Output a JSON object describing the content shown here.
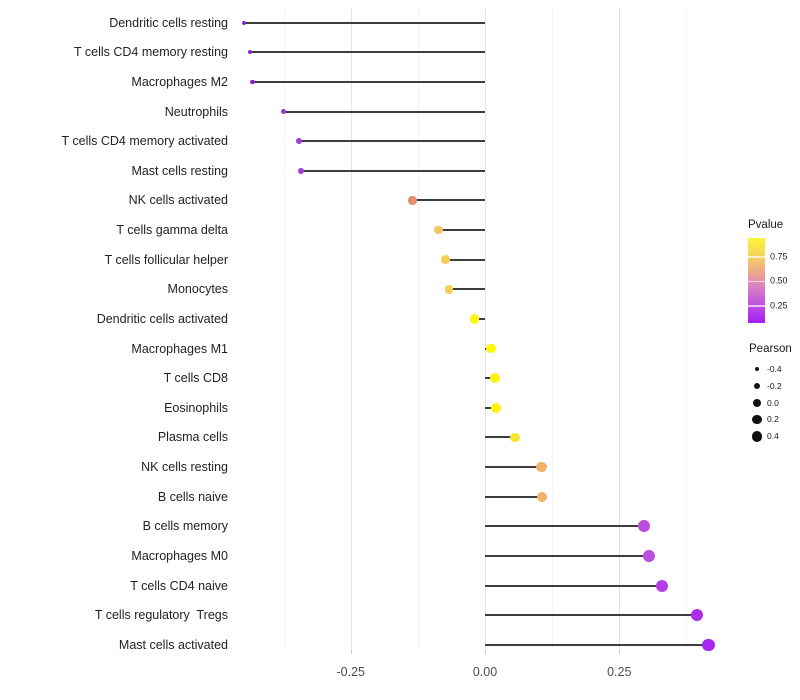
{
  "chart_data": {
    "type": "scatter",
    "variant": "lollipop",
    "title": "",
    "xlabel": "",
    "ylabel": "",
    "grid": true,
    "legend_position": "right",
    "categories": [
      "Dendritic cells resting",
      "T cells CD4 memory resting",
      "Macrophages M2",
      "Neutrophils",
      "T cells CD4 memory activated",
      "Mast cells resting",
      "NK cells activated",
      "T cells gamma delta",
      "T cells follicular helper",
      "Monocytes",
      "Dendritic cells activated",
      "Macrophages M1",
      "T cells CD8",
      "Eosinophils",
      "Plasma cells",
      "NK cells resting",
      "B cells naive",
      "B cells memory",
      "Macrophages M0",
      "T cells CD4 naive",
      "T cells regulatory  Tregs",
      "Mast cells activated"
    ],
    "series": [
      {
        "name": "Pearson",
        "values": [
          -0.448,
          -0.437,
          -0.433,
          -0.375,
          -0.346,
          -0.342,
          -0.135,
          -0.087,
          -0.074,
          -0.067,
          -0.02,
          0.011,
          0.019,
          0.021,
          0.056,
          0.105,
          0.106,
          0.296,
          0.306,
          0.329,
          0.395,
          0.416
        ]
      }
    ],
    "point_colors": [
      "#8824CE",
      "#8A26CE",
      "#8A26CE",
      "#9933D6",
      "#A33DDA",
      "#A33DDA",
      "#E0926E",
      "#F3C45F",
      "#F6CE55",
      "#F6CE55",
      "#FDF70D",
      "#FEFA05",
      "#FDF40E",
      "#FDF40E",
      "#F8E532",
      "#F0B169",
      "#F0B169",
      "#BC4EDE",
      "#BC4EDE",
      "#B43EE4",
      "#AC2EEA",
      "#A826EC"
    ],
    "x_axis": {
      "ticks": [
        {
          "label": "-0.25",
          "value": -0.25
        },
        {
          "label": "0.00",
          "value": 0.0
        },
        {
          "label": "0.25",
          "value": 0.25
        }
      ],
      "minor_gridlines": [
        -0.375,
        -0.125,
        0.125,
        0.375
      ],
      "xlim": [
        -0.46,
        0.44
      ]
    },
    "legends": {
      "pvalue": {
        "title": "Pvalue",
        "gradient_low_color": "#A01EF0",
        "gradient_high_color": "#FCF631",
        "ticks": [
          {
            "label": "0.75",
            "pos": 0.222
          },
          {
            "label": "0.50",
            "pos": 0.511
          },
          {
            "label": "0.25",
            "pos": 0.799
          }
        ]
      },
      "pearson": {
        "title": "Pearson",
        "entries": [
          {
            "label": "-0.4",
            "value": -0.4
          },
          {
            "label": "-0.2",
            "value": -0.2
          },
          {
            "label": "0.0",
            "value": 0.0
          },
          {
            "label": "0.2",
            "value": 0.2
          },
          {
            "label": "0.4",
            "value": 0.4
          }
        ]
      }
    }
  }
}
